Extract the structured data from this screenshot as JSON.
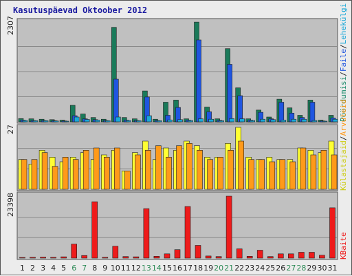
{
  "chart_data": {
    "type": "bar",
    "title": "Kasutuspäevad Oktoober 2012",
    "categories": [
      "1",
      "2",
      "3",
      "4",
      "5",
      "6",
      "7",
      "8",
      "9",
      "10",
      "11",
      "12",
      "13",
      "14",
      "15",
      "16",
      "17",
      "18",
      "19",
      "20",
      "21",
      "22",
      "23",
      "24",
      "25",
      "26",
      "27",
      "28",
      "29",
      "30",
      "31"
    ],
    "weekend_days": [
      "6",
      "7",
      "13",
      "14",
      "20",
      "21",
      "27",
      "28"
    ],
    "colors": {
      "background": "#ececec",
      "plot_bg": "#c0c0c0",
      "visits": "#1a7a5a",
      "pages": "#1f55e0",
      "files": "#1aa8d8",
      "hits": "#ffff33",
      "sites": "#ff9a1a",
      "kbytes": "#ee1b1b",
      "weekend_tick": "#2e8b57",
      "weekday_tick": "#222222"
    },
    "panels": [
      {
        "name": "traffic",
        "ymax_label": "2307",
        "ylim": [
          0,
          2307
        ],
        "legend": [
          {
            "text": "Pöördumisi",
            "color": "#1a8a6a"
          },
          {
            "text": "/",
            "color": "#222222"
          },
          {
            "text": "Faile",
            "color": "#1f55e0"
          },
          {
            "text": "/",
            "color": "#222222"
          },
          {
            "text": "Lehekülgi",
            "color": "#1aa8d8"
          }
        ],
        "series": [
          {
            "name": "Pöördumisi",
            "values": [
              75,
              70,
              60,
              50,
              40,
              380,
              180,
              100,
              60,
              2170,
              100,
              70,
              710,
              60,
              450,
              500,
              70,
              2290,
              340,
              70,
              1680,
              780,
              70,
              270,
              110,
              520,
              320,
              150,
              500,
              40,
              150
            ]
          },
          {
            "name": "Faile",
            "values": [
              40,
              30,
              30,
              25,
              20,
              140,
              70,
              50,
              30,
              980,
              40,
              30,
              570,
              30,
              150,
              330,
              40,
              1880,
              230,
              35,
              1320,
              600,
              40,
              220,
              70,
              450,
              200,
              100,
              450,
              20,
              90
            ]
          },
          {
            "name": "Lehekülgi",
            "values": [
              30,
              25,
              25,
              20,
              15,
              110,
              55,
              40,
              25,
              110,
              30,
              25,
              140,
              25,
              45,
              50,
              30,
              70,
              60,
              25,
              75,
              70,
              30,
              60,
              50,
              40,
              60,
              60,
              30,
              15,
              60
            ]
          }
        ]
      },
      {
        "name": "sites",
        "ymax_label": "27",
        "ylim": [
          0,
          27
        ],
        "legend": [
          {
            "text": "Külastajaid",
            "color": "#cccc10"
          },
          {
            "text": "/",
            "color": "#222222"
          },
          {
            "text": "Arvuteid",
            "color": "#ff9a1a"
          }
        ],
        "series": [
          {
            "name": "Külastajaid",
            "values": [
              13,
              11,
              17,
              14,
              12,
              14,
              16,
              13,
              15,
              17,
              8,
              16,
              21,
              13,
              18,
              17,
              21,
              19,
              14,
              14,
              20,
              27,
              14,
              13,
              14,
              13,
              13,
              18,
              17,
              16,
              21
            ]
          },
          {
            "name": "Arvuteid",
            "values": [
              13,
              13,
              16,
              10,
              14,
              13,
              17,
              18,
              14,
              18,
              8,
              15,
              17,
              19,
              14,
              19,
              20,
              17,
              13,
              14,
              17,
              21,
              13,
              13,
              12,
              13,
              12,
              18,
              15,
              17,
              15
            ]
          }
        ]
      },
      {
        "name": "kbytes",
        "ymax_label": "23398",
        "ylim": [
          0,
          23398
        ],
        "legend": [
          {
            "text": "KBaite",
            "color": "#ee1b1b"
          }
        ],
        "series": [
          {
            "name": "KBaite",
            "values": [
              200,
              300,
              400,
              300,
              500,
              5300,
              1000,
              21300,
              300,
              4500,
              600,
              500,
              18700,
              700,
              1600,
              3200,
              19500,
              4800,
              800,
              600,
              23398,
              3500,
              700,
              3000,
              600,
              1600,
              1600,
              2200,
              2200,
              1100,
              19000
            ]
          }
        ]
      }
    ]
  }
}
